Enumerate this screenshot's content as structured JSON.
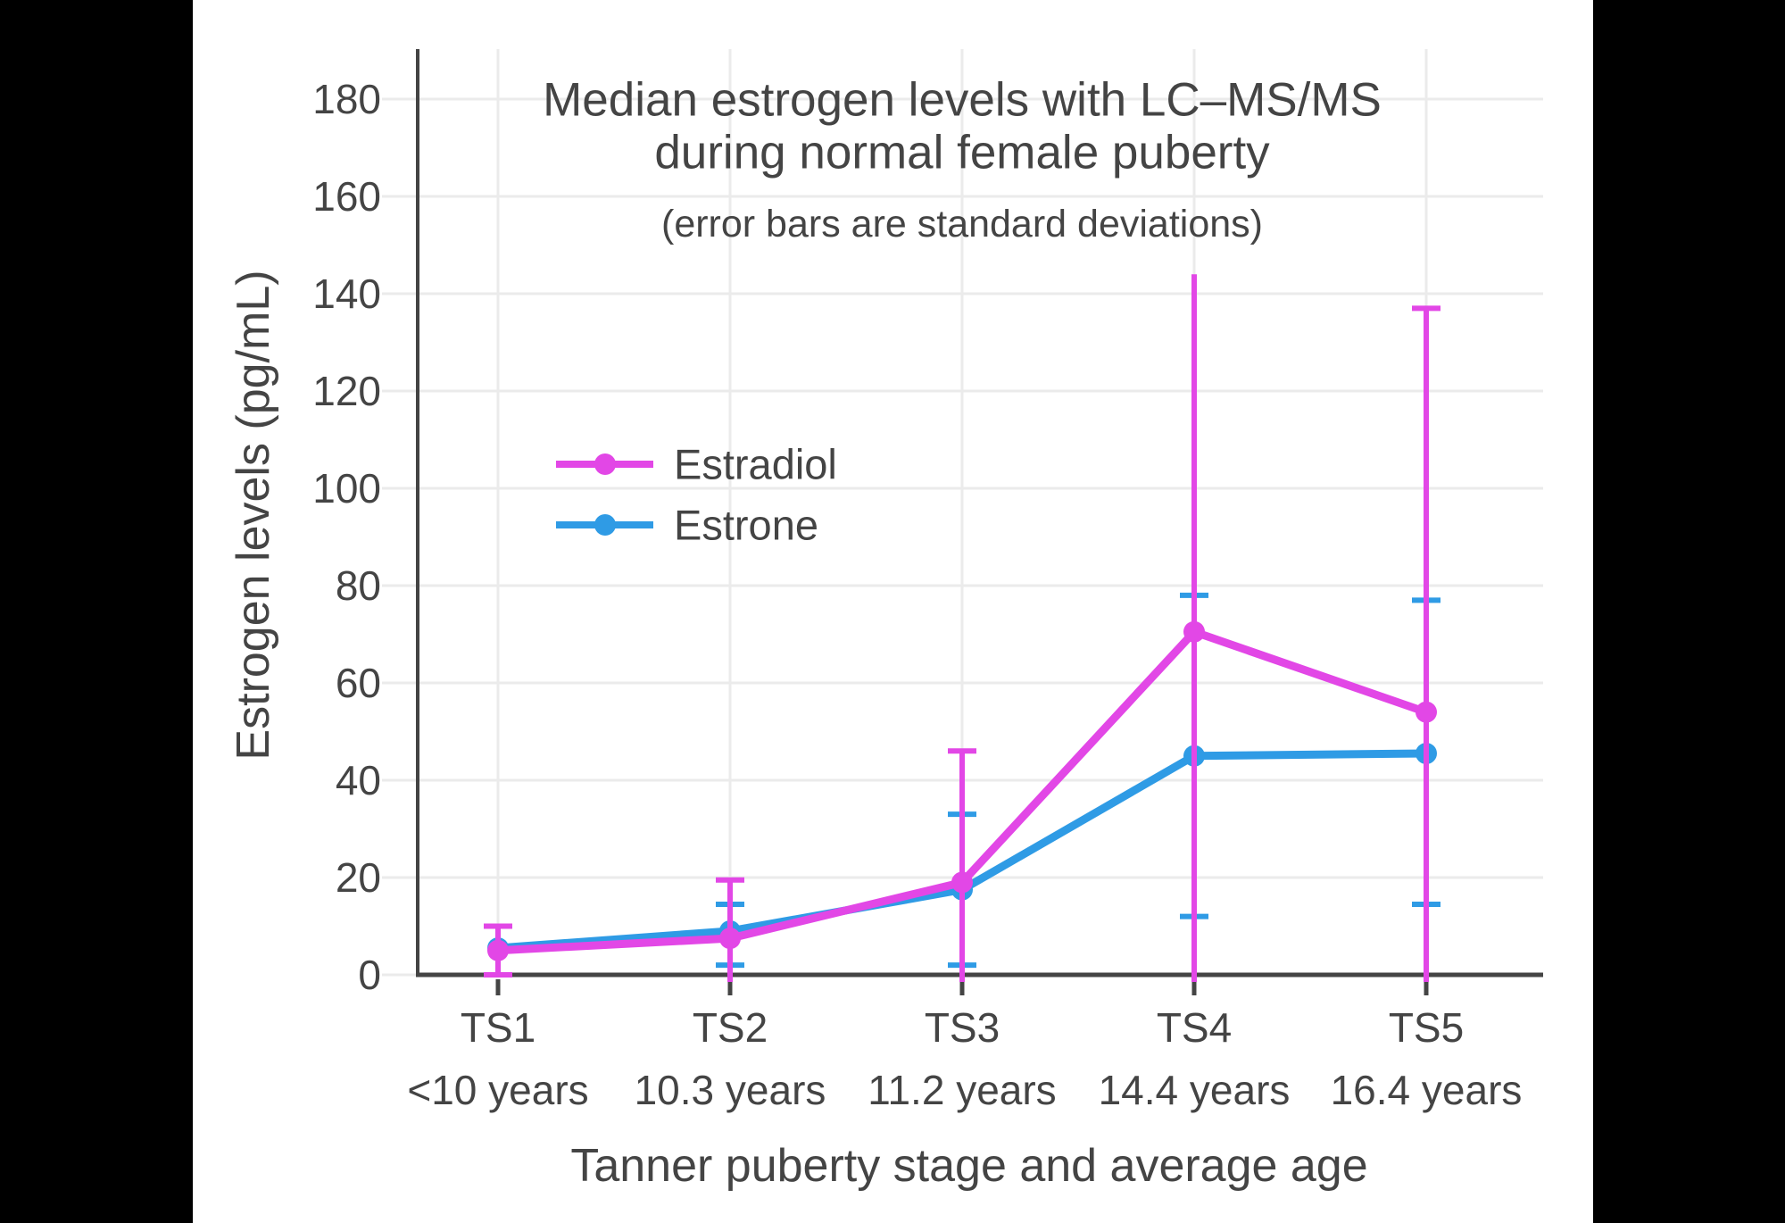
{
  "figure": {
    "background": "#000000",
    "panel_background": "#ffffff"
  },
  "chart_data": {
    "type": "line",
    "title_line1": "Median estrogen levels with LC–MS/MS",
    "title_line2": "during normal female puberty",
    "subtitle": "(error bars are standard deviations)",
    "xlabel": "Tanner puberty stage and average age",
    "ylabel": "Estrogen levels (pg/mL)",
    "ylim": [
      0,
      190
    ],
    "yticks": [
      0,
      20,
      40,
      60,
      80,
      100,
      120,
      140,
      160,
      180
    ],
    "grid": true,
    "legend_position": "inside-middle-left",
    "categories": [
      {
        "stage": "TS1",
        "age": "<10 years"
      },
      {
        "stage": "TS2",
        "age": "10.3 years"
      },
      {
        "stage": "TS3",
        "age": "11.2 years"
      },
      {
        "stage": "TS4",
        "age": "14.4 years"
      },
      {
        "stage": "TS5",
        "age": "16.4 years"
      }
    ],
    "series": [
      {
        "name": "Estradiol",
        "color": "#e247e6",
        "values": [
          5,
          7.5,
          19,
          70.5,
          54
        ],
        "error_bar_top": [
          10,
          19.5,
          46,
          144,
          137
        ],
        "error_bar_bottom": [
          0,
          0,
          0,
          0,
          0
        ],
        "cap_top": [
          true,
          true,
          true,
          false,
          true
        ],
        "cap_bottom": [
          true,
          false,
          false,
          false,
          false
        ],
        "bottom_clipped_at_zero": [
          false,
          true,
          true,
          true,
          true
        ]
      },
      {
        "name": "Estrone",
        "color": "#2f9be5",
        "values": [
          5.5,
          9,
          17.5,
          45,
          45.5
        ],
        "error_bar_top": [
          null,
          14.5,
          33,
          78,
          77
        ],
        "error_bar_bottom": [
          null,
          2,
          2,
          12,
          14.5
        ],
        "cap_top": [
          false,
          true,
          true,
          true,
          true
        ],
        "cap_bottom": [
          false,
          true,
          true,
          true,
          true
        ],
        "bottom_clipped_at_zero": [
          false,
          false,
          false,
          false,
          false
        ]
      }
    ],
    "colors": {
      "axis": "#444444",
      "grid": "#ebebeb",
      "text": "#444444"
    }
  }
}
